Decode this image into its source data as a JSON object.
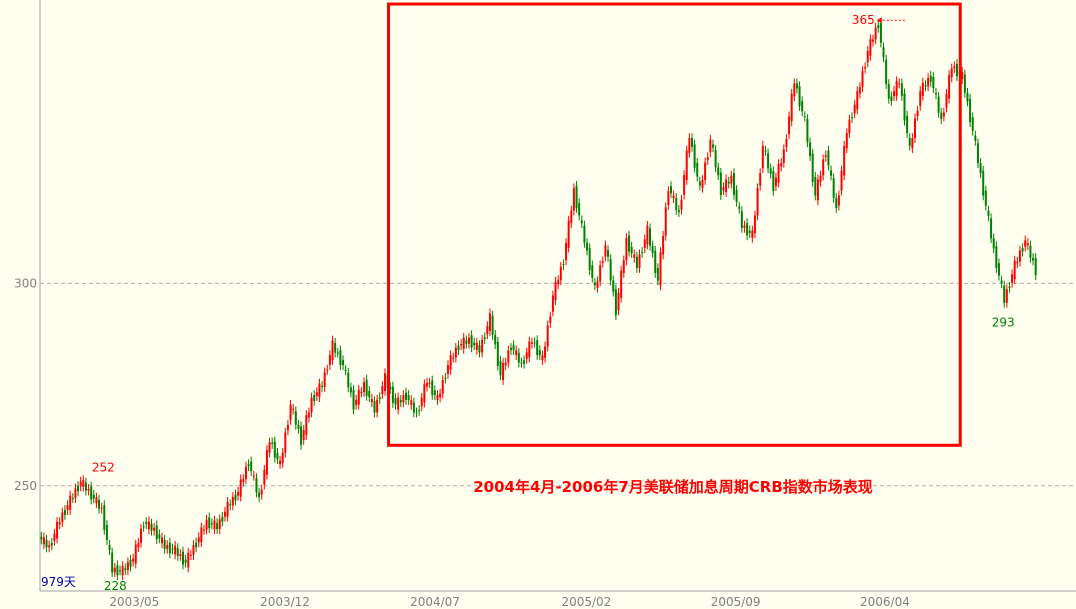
{
  "chart_data": {
    "type": "candlestick",
    "title": "2004年4月-2006年7月美联储加息周期CRB指数市场表现",
    "xlabel": "",
    "ylabel": "",
    "x_range": [
      "2002-12-18",
      "2006-11-03"
    ],
    "ylim": [
      224,
      370
    ],
    "grid": true,
    "y_ticks": [
      250,
      300
    ],
    "x_ticks": [
      {
        "label": "2003/05",
        "date": "2003-05-01"
      },
      {
        "label": "2003/12",
        "date": "2003-12-01"
      },
      {
        "label": "2004/07",
        "date": "2004-07-01"
      },
      {
        "label": "2005/02",
        "date": "2005-02-01"
      },
      {
        "label": "2005/09",
        "date": "2005-09-01"
      },
      {
        "label": "2006/04",
        "date": "2006-04-01"
      }
    ],
    "closes": [
      237.4,
      234.7,
      241.6,
      246.4,
      251,
      247.8,
      244,
      229.2,
      229,
      232,
      241,
      239,
      235,
      234,
      231,
      236,
      241,
      239.9,
      244.8,
      248.5,
      256,
      246.6,
      261.3,
      255,
      270,
      261.3,
      271.2,
      275,
      284.7,
      279.8,
      270,
      275,
      268.7,
      276.6,
      270,
      272.4,
      267.5,
      276,
      271.2,
      279.8,
      284.7,
      286,
      283.5,
      291.4,
      277.3,
      284.7,
      279.8,
      286,
      281,
      297,
      305.7,
      322.9,
      310.6,
      298.3,
      309.4,
      293.3,
      310.6,
      304.4,
      313,
      300.7,
      324,
      317,
      336.5,
      323,
      335.5,
      323,
      326,
      314.3,
      311.8,
      334,
      324,
      332.5,
      350,
      340,
      321.7,
      332.8,
      318,
      337.7,
      346.3,
      357.4,
      364.3,
      345,
      350,
      332.8,
      347.5,
      351,
      340,
      353.7,
      351,
      337.7,
      322.9,
      308,
      295.8,
      304.4,
      310.6,
      303.2
    ],
    "up_color": "#ff0000",
    "down_color": "#008000",
    "annotations": [
      {
        "text": "252",
        "value": 252,
        "date": "2003-03-18",
        "color": "#ff0000",
        "kind": "high"
      },
      {
        "text": "228",
        "value": 228,
        "date": "2003-04-04",
        "color": "#008000",
        "kind": "low"
      },
      {
        "text": "365",
        "value": 365,
        "date": "2006-05-02",
        "color": "#ff0000",
        "kind": "high-arrow"
      },
      {
        "text": "293",
        "value": 293,
        "date": "2006-09-16",
        "color": "#008000",
        "kind": "low"
      }
    ],
    "day_count_label": "979天",
    "highlight_box": {
      "start": "2004-04-26",
      "end": "2006-07-17",
      "ylow": 260,
      "yhigh": 369,
      "color": "#ff0000"
    }
  }
}
